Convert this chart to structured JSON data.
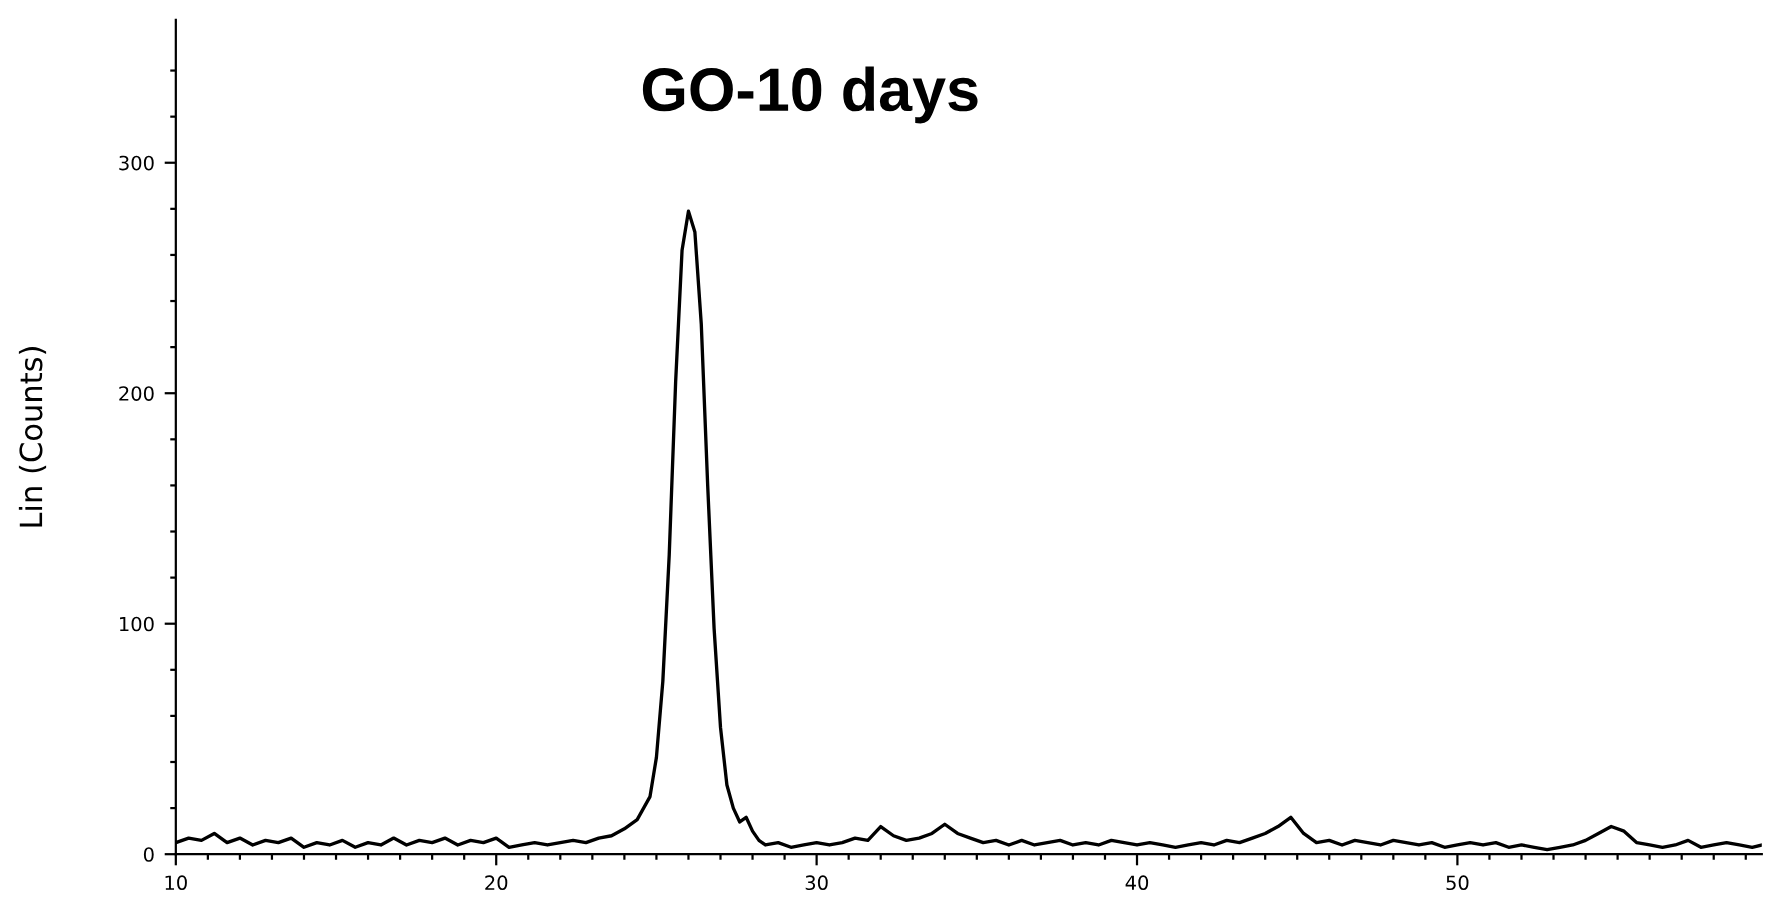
{
  "chart_data": {
    "type": "line",
    "title": "GO-10 days",
    "ylabel": "Lin (Counts)",
    "series": [
      {
        "color": "#000000",
        "x": [
          10.0,
          10.4,
          10.8,
          11.2,
          11.6,
          12.0,
          12.4,
          12.8,
          13.2,
          13.6,
          14.0,
          14.4,
          14.8,
          15.2,
          15.6,
          16.0,
          16.4,
          16.8,
          17.2,
          17.6,
          18.0,
          18.4,
          18.8,
          19.2,
          19.6,
          20.0,
          20.4,
          20.8,
          21.2,
          21.6,
          22.0,
          22.4,
          22.8,
          23.2,
          23.6,
          24.0,
          24.4,
          24.8,
          25.0,
          25.2,
          25.4,
          25.6,
          25.8,
          26.0,
          26.2,
          26.4,
          26.6,
          26.8,
          27.0,
          27.2,
          27.4,
          27.6,
          27.8,
          28.0,
          28.2,
          28.4,
          28.8,
          29.2,
          29.6,
          30.0,
          30.4,
          30.8,
          31.2,
          31.6,
          32.0,
          32.4,
          32.8,
          33.2,
          33.6,
          34.0,
          34.4,
          34.8,
          35.2,
          35.6,
          36.0,
          36.4,
          36.8,
          37.2,
          37.6,
          38.0,
          38.4,
          38.8,
          39.2,
          39.6,
          40.0,
          40.4,
          40.8,
          41.2,
          41.6,
          42.0,
          42.4,
          42.8,
          43.2,
          43.6,
          44.0,
          44.4,
          44.8,
          45.2,
          45.6,
          46.0,
          46.4,
          46.8,
          47.2,
          47.6,
          48.0,
          48.4,
          48.8,
          49.2,
          49.6,
          50.0,
          50.4,
          50.8,
          51.2,
          51.6,
          52.0,
          52.4,
          52.8,
          53.2,
          53.6,
          54.0,
          54.4,
          54.8,
          55.2,
          55.6,
          56.0,
          56.4,
          56.8,
          57.2,
          57.6,
          58.0,
          58.4,
          58.8,
          59.2,
          59.5
        ],
        "values": [
          5,
          7,
          6,
          9,
          5,
          7,
          4,
          6,
          5,
          7,
          3,
          5,
          4,
          6,
          3,
          5,
          4,
          7,
          4,
          6,
          5,
          7,
          4,
          6,
          5,
          7,
          3,
          4,
          5,
          4,
          5,
          6,
          5,
          7,
          8,
          11,
          15,
          25,
          42,
          75,
          130,
          205,
          262,
          279,
          270,
          230,
          160,
          98,
          55,
          30,
          20,
          14,
          16,
          10,
          6,
          4,
          5,
          3,
          4,
          5,
          4,
          5,
          7,
          6,
          12,
          8,
          6,
          7,
          9,
          13,
          9,
          7,
          5,
          6,
          4,
          6,
          4,
          5,
          6,
          4,
          5,
          4,
          6,
          5,
          4,
          5,
          4,
          3,
          4,
          5,
          4,
          6,
          5,
          7,
          9,
          12,
          16,
          9,
          5,
          6,
          4,
          6,
          5,
          4,
          6,
          5,
          4,
          5,
          3,
          4,
          5,
          4,
          5,
          3,
          4,
          3,
          2,
          3,
          4,
          6,
          9,
          12,
          10,
          5,
          4,
          3,
          4,
          6,
          3,
          4,
          5,
          4,
          3,
          4
        ]
      }
    ],
    "xlim": [
      10,
      59.5
    ],
    "ylim": [
      0,
      362
    ],
    "xticks": [
      10,
      {
        "value": 11,
        "label": null
      },
      {
        "value": 12,
        "label": null
      },
      {
        "value": 13,
        "label": null
      },
      {
        "value": 14,
        "label": null
      },
      {
        "value": 15,
        "label": null
      },
      {
        "value": 16,
        "label": null
      },
      {
        "value": 17,
        "label": null
      },
      {
        "value": 18,
        "label": null
      },
      {
        "value": 19,
        "label": null
      },
      20,
      {
        "value": 21,
        "label": null
      },
      {
        "value": 22,
        "label": null
      },
      {
        "value": 23,
        "label": null
      },
      {
        "value": 24,
        "label": null
      },
      {
        "value": 25,
        "label": null
      },
      {
        "value": 26,
        "label": null
      },
      {
        "value": 27,
        "label": null
      },
      {
        "value": 28,
        "label": null
      },
      {
        "value": 29,
        "label": null
      },
      30,
      {
        "value": 31,
        "label": null
      },
      {
        "value": 32,
        "label": null
      },
      {
        "value": 33,
        "label": null
      },
      {
        "value": 34,
        "label": null
      },
      {
        "value": 35,
        "label": null
      },
      {
        "value": 36,
        "label": null
      },
      {
        "value": 37,
        "label": null
      },
      {
        "value": 38,
        "label": null
      },
      {
        "value": 39,
        "label": null
      },
      40,
      {
        "value": 41,
        "label": null
      },
      {
        "value": 42,
        "label": null
      },
      {
        "value": 43,
        "label": null
      },
      {
        "value": 44,
        "label": null
      },
      {
        "value": 45,
        "label": null
      },
      {
        "value": 46,
        "label": null
      },
      {
        "value": 47,
        "label": null
      },
      {
        "value": 48,
        "label": null
      },
      {
        "value": 49,
        "label": null
      },
      50,
      {
        "value": 51,
        "label": null
      },
      {
        "value": 52,
        "label": null
      },
      {
        "value": 53,
        "label": null
      },
      {
        "value": 54,
        "label": null
      },
      {
        "value": 55,
        "label": null
      },
      {
        "value": 56,
        "label": null
      },
      {
        "value": 57,
        "label": null
      },
      {
        "value": 58,
        "label": null
      },
      {
        "value": 59,
        "label": null
      }
    ],
    "yticks": [
      0,
      {
        "value": 20,
        "label": null
      },
      {
        "value": 40,
        "label": null
      },
      {
        "value": 60,
        "label": null
      },
      {
        "value": 80,
        "label": null
      },
      100,
      {
        "value": 120,
        "label": null
      },
      {
        "value": 140,
        "label": null
      },
      {
        "value": 160,
        "label": null
      },
      {
        "value": 180,
        "label": null
      },
      200,
      {
        "value": 220,
        "label": null
      },
      {
        "value": 240,
        "label": null
      },
      {
        "value": 260,
        "label": null
      },
      {
        "value": 280,
        "label": null
      },
      300,
      {
        "value": 320,
        "label": null
      },
      {
        "value": 340,
        "label": null
      }
    ],
    "grid": false,
    "legend": false,
    "marker": "none",
    "line_style": "solid"
  }
}
